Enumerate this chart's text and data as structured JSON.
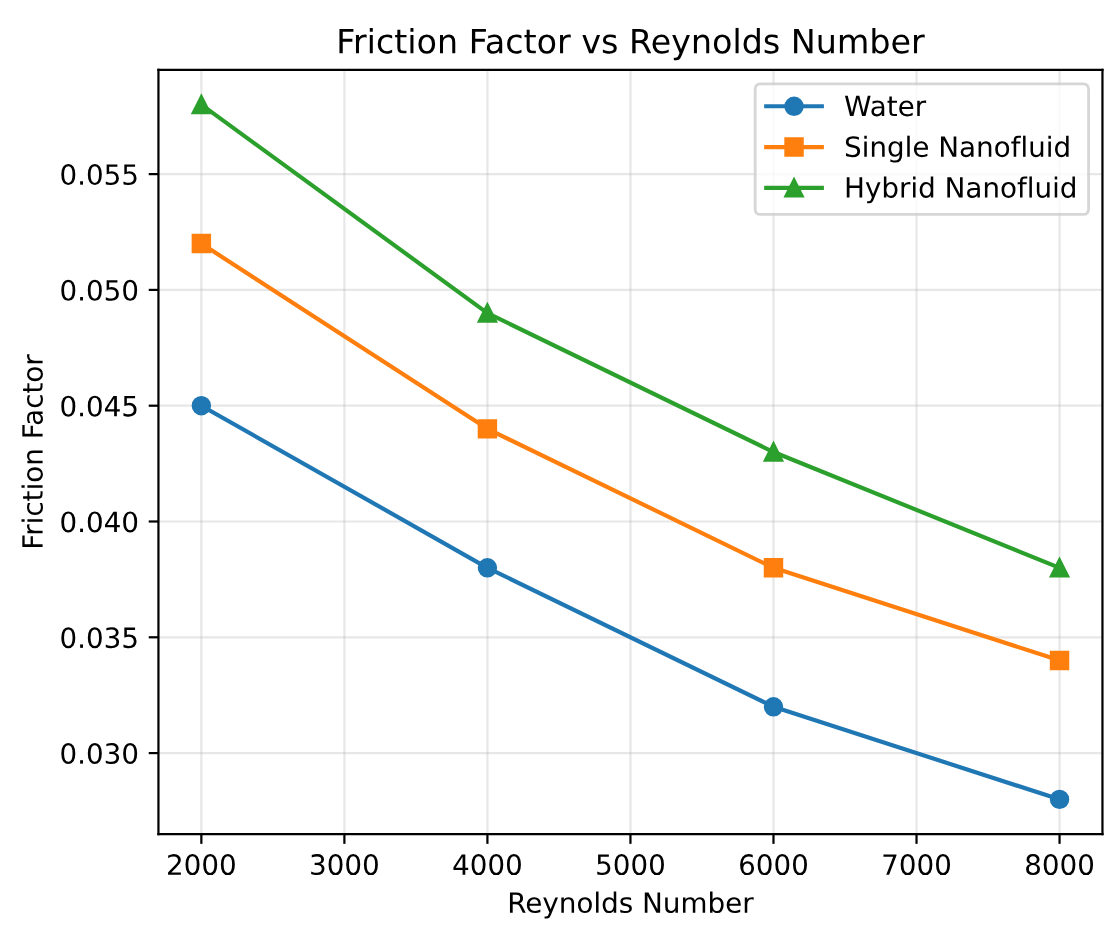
{
  "chart_data": {
    "type": "line",
    "title": "Friction Factor vs Reynolds Number",
    "xlabel": "Reynolds Number",
    "ylabel": "Friction Factor",
    "x": [
      2000,
      4000,
      6000,
      8000
    ],
    "series": [
      {
        "name": "Water",
        "color": "#1f77b4",
        "marker": "circle",
        "values": [
          0.045,
          0.038,
          0.032,
          0.028
        ]
      },
      {
        "name": "Single Nanofluid",
        "color": "#ff7f0e",
        "marker": "square",
        "values": [
          0.052,
          0.044,
          0.038,
          0.034
        ]
      },
      {
        "name": "Hybrid Nanofluid",
        "color": "#2ca02c",
        "marker": "triangle",
        "values": [
          0.058,
          0.049,
          0.043,
          0.038
        ]
      }
    ],
    "xlim": [
      1700,
      8300
    ],
    "xticks": [
      2000,
      3000,
      4000,
      5000,
      6000,
      7000,
      8000
    ],
    "ylim": [
      0.0265,
      0.0595
    ],
    "yticks": [
      {
        "value": 0.03,
        "label": "0.030"
      },
      {
        "value": 0.035,
        "label": "0.035"
      },
      {
        "value": 0.04,
        "label": "0.040"
      },
      {
        "value": 0.045,
        "label": "0.045"
      },
      {
        "value": 0.05,
        "label": "0.050"
      },
      {
        "value": 0.055,
        "label": "0.055"
      }
    ],
    "grid": true,
    "legend": "top right",
    "line_style": "solid"
  }
}
